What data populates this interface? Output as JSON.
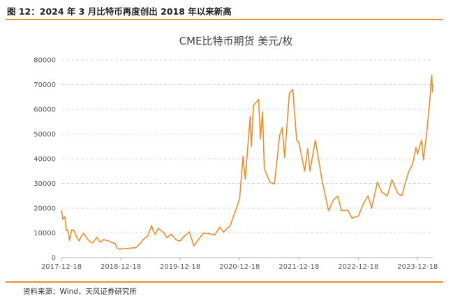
{
  "figure_title": "图 12：2024 年 3 月比特币再度创出 2018 年以来新高",
  "source": "资料来源：Wind，天风证券研究所",
  "colors": {
    "line": "#F08C2A",
    "rule": "#F08C2A",
    "grid": "#D9D9D9",
    "axis": "#B0B0B0"
  },
  "chart_data": {
    "type": "line",
    "title": "CME比特币期货 美元/枚",
    "xlabel": "",
    "ylabel": "",
    "ylim": [
      0,
      80000
    ],
    "xlim": [
      "2017-12-18",
      "2024-03-20"
    ],
    "yticks": [
      "0",
      "10000",
      "20000",
      "30000",
      "40000",
      "50000",
      "60000",
      "70000",
      "80000"
    ],
    "xticks": [
      "2017-12-18",
      "2018-12-18",
      "2019-12-18",
      "2020-12-18",
      "2021-12-18",
      "2022-12-18",
      "2023-12-18"
    ],
    "grid": "horizontal dashed",
    "legend": "none",
    "series": [
      {
        "name": "",
        "points": [
          [
            "2017-12-18",
            19000
          ],
          [
            "2017-12-28",
            15500
          ],
          [
            "2018-01-08",
            16500
          ],
          [
            "2018-01-17",
            11000
          ],
          [
            "2018-01-26",
            11300
          ],
          [
            "2018-02-06",
            7000
          ],
          [
            "2018-02-20",
            11200
          ],
          [
            "2018-03-05",
            11000
          ],
          [
            "2018-03-20",
            8500
          ],
          [
            "2018-04-06",
            6800
          ],
          [
            "2018-04-25",
            9300
          ],
          [
            "2018-05-05",
            9800
          ],
          [
            "2018-05-28",
            7500
          ],
          [
            "2018-06-12",
            6400
          ],
          [
            "2018-06-29",
            6000
          ],
          [
            "2018-07-24",
            8200
          ],
          [
            "2018-08-14",
            6200
          ],
          [
            "2018-09-04",
            7300
          ],
          [
            "2018-10-10",
            6600
          ],
          [
            "2018-11-14",
            5600
          ],
          [
            "2018-11-25",
            3900
          ],
          [
            "2018-12-15",
            3300
          ],
          [
            "2018-12-28",
            3800
          ],
          [
            "2019-01-20",
            3600
          ],
          [
            "2019-02-18",
            3900
          ],
          [
            "2019-03-20",
            4000
          ],
          [
            "2019-04-05",
            5000
          ],
          [
            "2019-05-13",
            7800
          ],
          [
            "2019-05-31",
            8600
          ],
          [
            "2019-06-26",
            13000
          ],
          [
            "2019-07-04",
            11000
          ],
          [
            "2019-07-17",
            9400
          ],
          [
            "2019-08-06",
            11800
          ],
          [
            "2019-09-10",
            10000
          ],
          [
            "2019-09-27",
            8100
          ],
          [
            "2019-10-26",
            9500
          ],
          [
            "2019-11-22",
            7200
          ],
          [
            "2019-12-18",
            6700
          ],
          [
            "2020-01-15",
            8800
          ],
          [
            "2020-02-13",
            10400
          ],
          [
            "2020-03-12",
            4800
          ],
          [
            "2020-04-01",
            6600
          ],
          [
            "2020-05-08",
            9900
          ],
          [
            "2020-06-10",
            9700
          ],
          [
            "2020-07-20",
            9200
          ],
          [
            "2020-08-17",
            12300
          ],
          [
            "2020-09-10",
            10400
          ],
          [
            "2020-10-21",
            12900
          ],
          [
            "2020-11-24",
            19200
          ],
          [
            "2020-12-18",
            23800
          ],
          [
            "2021-01-08",
            41000
          ],
          [
            "2021-01-22",
            31800
          ],
          [
            "2021-02-21",
            57000
          ],
          [
            "2021-02-28",
            45000
          ],
          [
            "2021-03-13",
            61500
          ],
          [
            "2021-04-14",
            64000
          ],
          [
            "2021-04-25",
            48000
          ],
          [
            "2021-05-08",
            59000
          ],
          [
            "2021-05-19",
            36000
          ],
          [
            "2021-06-22",
            30500
          ],
          [
            "2021-07-20",
            29800
          ],
          [
            "2021-08-22",
            49700
          ],
          [
            "2021-09-06",
            52500
          ],
          [
            "2021-09-21",
            40500
          ],
          [
            "2021-10-20",
            66500
          ],
          [
            "2021-11-10",
            68000
          ],
          [
            "2021-12-04",
            47500
          ],
          [
            "2021-12-18",
            46500
          ],
          [
            "2022-01-22",
            35000
          ],
          [
            "2022-02-10",
            44000
          ],
          [
            "2022-02-24",
            35000
          ],
          [
            "2022-03-29",
            47500
          ],
          [
            "2022-05-10",
            31000
          ],
          [
            "2022-06-18",
            19000
          ],
          [
            "2022-07-20",
            23500
          ],
          [
            "2022-08-14",
            24800
          ],
          [
            "2022-09-06",
            19000
          ],
          [
            "2022-10-15",
            19200
          ],
          [
            "2022-11-09",
            16000
          ],
          [
            "2022-12-18",
            16800
          ],
          [
            "2023-01-20",
            22000
          ],
          [
            "2023-02-16",
            25000
          ],
          [
            "2023-03-10",
            20000
          ],
          [
            "2023-04-14",
            30500
          ],
          [
            "2023-05-12",
            26500
          ],
          [
            "2023-06-15",
            25000
          ],
          [
            "2023-07-13",
            31500
          ],
          [
            "2023-08-18",
            26000
          ],
          [
            "2023-09-11",
            25000
          ],
          [
            "2023-10-24",
            34800
          ],
          [
            "2023-11-15",
            37500
          ],
          [
            "2023-12-08",
            44500
          ],
          [
            "2023-12-18",
            42000
          ],
          [
            "2024-01-11",
            47500
          ],
          [
            "2024-01-23",
            39500
          ],
          [
            "2024-02-15",
            52500
          ],
          [
            "2024-03-05",
            66000
          ],
          [
            "2024-03-08",
            70500
          ],
          [
            "2024-03-14",
            73800
          ],
          [
            "2024-03-18",
            67000
          ],
          [
            "2024-03-20",
            70000
          ]
        ]
      }
    ]
  }
}
